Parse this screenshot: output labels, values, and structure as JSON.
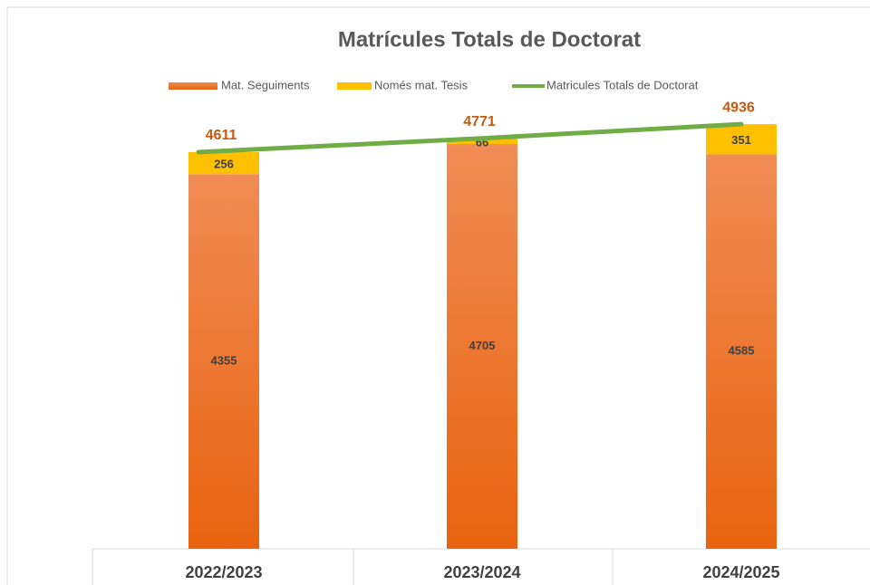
{
  "chart_data": {
    "type": "stacked_bar_line",
    "title": "Matrícules Totals de Doctorat",
    "categories": [
      "2022/2023",
      "2023/2024",
      "2024/2025"
    ],
    "series": [
      {
        "name": "Mat. Seguiments",
        "type": "bar",
        "color": "#ed7d31",
        "values": [
          4355,
          4705,
          4585
        ]
      },
      {
        "name": "Només mat. Tesis",
        "type": "bar",
        "color": "#ffc000",
        "values": [
          256,
          66,
          351
        ]
      },
      {
        "name": "Matricules Totals de Doctorat",
        "type": "line",
        "color": "#70ad47",
        "values": [
          4611,
          4771,
          4936
        ]
      }
    ]
  }
}
